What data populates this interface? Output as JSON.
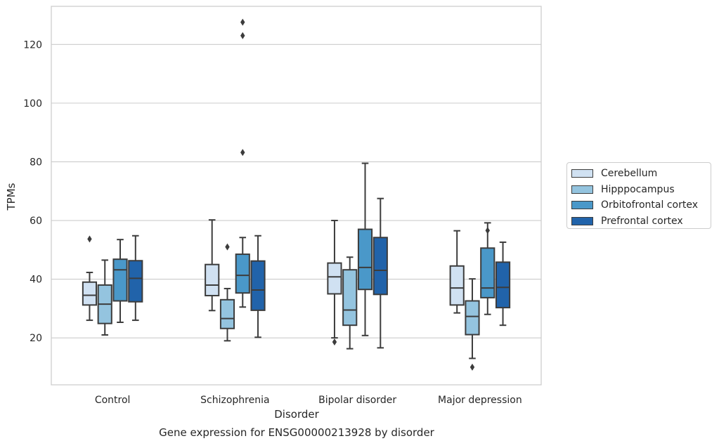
{
  "chart_data": {
    "type": "box",
    "xlabel": "Disorder",
    "ylabel": "TPMs",
    "caption": "Gene expression for ENSG00000213928 by disorder",
    "categories": [
      "Control",
      "Schizophrenia",
      "Bipolar disorder",
      "Major depression"
    ],
    "ylim": [
      4,
      133
    ],
    "yticks": [
      20,
      40,
      60,
      80,
      100,
      120
    ],
    "grid": "horizontal",
    "legend_position": "right",
    "series": [
      {
        "name": "Cerebellum",
        "color": "#d0e1f2",
        "boxes": [
          {
            "whisker_low": 26,
            "q1": 31.2,
            "median": 34.5,
            "q3": 39,
            "whisker_high": 42.3,
            "outliers": [
              53.7
            ]
          },
          {
            "whisker_low": 29.3,
            "q1": 34.4,
            "median": 38,
            "q3": 45,
            "whisker_high": 60.2,
            "outliers": []
          },
          {
            "whisker_low": 20,
            "q1": 35,
            "median": 40.8,
            "q3": 45.5,
            "whisker_high": 60,
            "outliers": [
              18.6
            ]
          },
          {
            "whisker_low": 28.5,
            "q1": 31.2,
            "median": 37,
            "q3": 44.5,
            "whisker_high": 56.5,
            "outliers": []
          }
        ]
      },
      {
        "name": "Hipppocampus",
        "color": "#94c4df",
        "boxes": [
          {
            "whisker_low": 21,
            "q1": 24.9,
            "median": 31.5,
            "q3": 38,
            "whisker_high": 46.5,
            "outliers": []
          },
          {
            "whisker_low": 19,
            "q1": 23.2,
            "median": 26.6,
            "q3": 33,
            "whisker_high": 36.8,
            "outliers": [
              51
            ]
          },
          {
            "whisker_low": 16.3,
            "q1": 24.3,
            "median": 29.5,
            "q3": 43.2,
            "whisker_high": 47.5,
            "outliers": []
          },
          {
            "whisker_low": 13,
            "q1": 21.1,
            "median": 27.3,
            "q3": 32.6,
            "whisker_high": 40.1,
            "outliers": [
              10
            ]
          }
        ]
      },
      {
        "name": "Orbitofrontal cortex",
        "color": "#4a98c9",
        "boxes": [
          {
            "whisker_low": 25.3,
            "q1": 32.6,
            "median": 43.2,
            "q3": 46.8,
            "whisker_high": 53.5,
            "outliers": []
          },
          {
            "whisker_low": 30.5,
            "q1": 35.3,
            "median": 41.3,
            "q3": 48.5,
            "whisker_high": 54.2,
            "outliers": [
              83.2,
              127.6,
              123
            ]
          },
          {
            "whisker_low": 20.8,
            "q1": 36.5,
            "median": 44,
            "q3": 57,
            "whisker_high": 79.5,
            "outliers": []
          },
          {
            "whisker_low": 28,
            "q1": 33.7,
            "median": 37,
            "q3": 50.6,
            "whisker_high": 59.2,
            "outliers": [
              56.6
            ]
          }
        ]
      },
      {
        "name": "Prefrontal cortex",
        "color": "#2163aa",
        "boxes": [
          {
            "whisker_low": 26,
            "q1": 32.3,
            "median": 40.3,
            "q3": 46.3,
            "whisker_high": 54.8,
            "outliers": []
          },
          {
            "whisker_low": 20.2,
            "q1": 29.4,
            "median": 36.3,
            "q3": 46.2,
            "whisker_high": 54.8,
            "outliers": []
          },
          {
            "whisker_low": 16.6,
            "q1": 34.8,
            "median": 43,
            "q3": 54.2,
            "whisker_high": 67.5,
            "outliers": []
          },
          {
            "whisker_low": 24.3,
            "q1": 30.3,
            "median": 37.2,
            "q3": 45.8,
            "whisker_high": 52.6,
            "outliers": []
          }
        ]
      }
    ]
  }
}
